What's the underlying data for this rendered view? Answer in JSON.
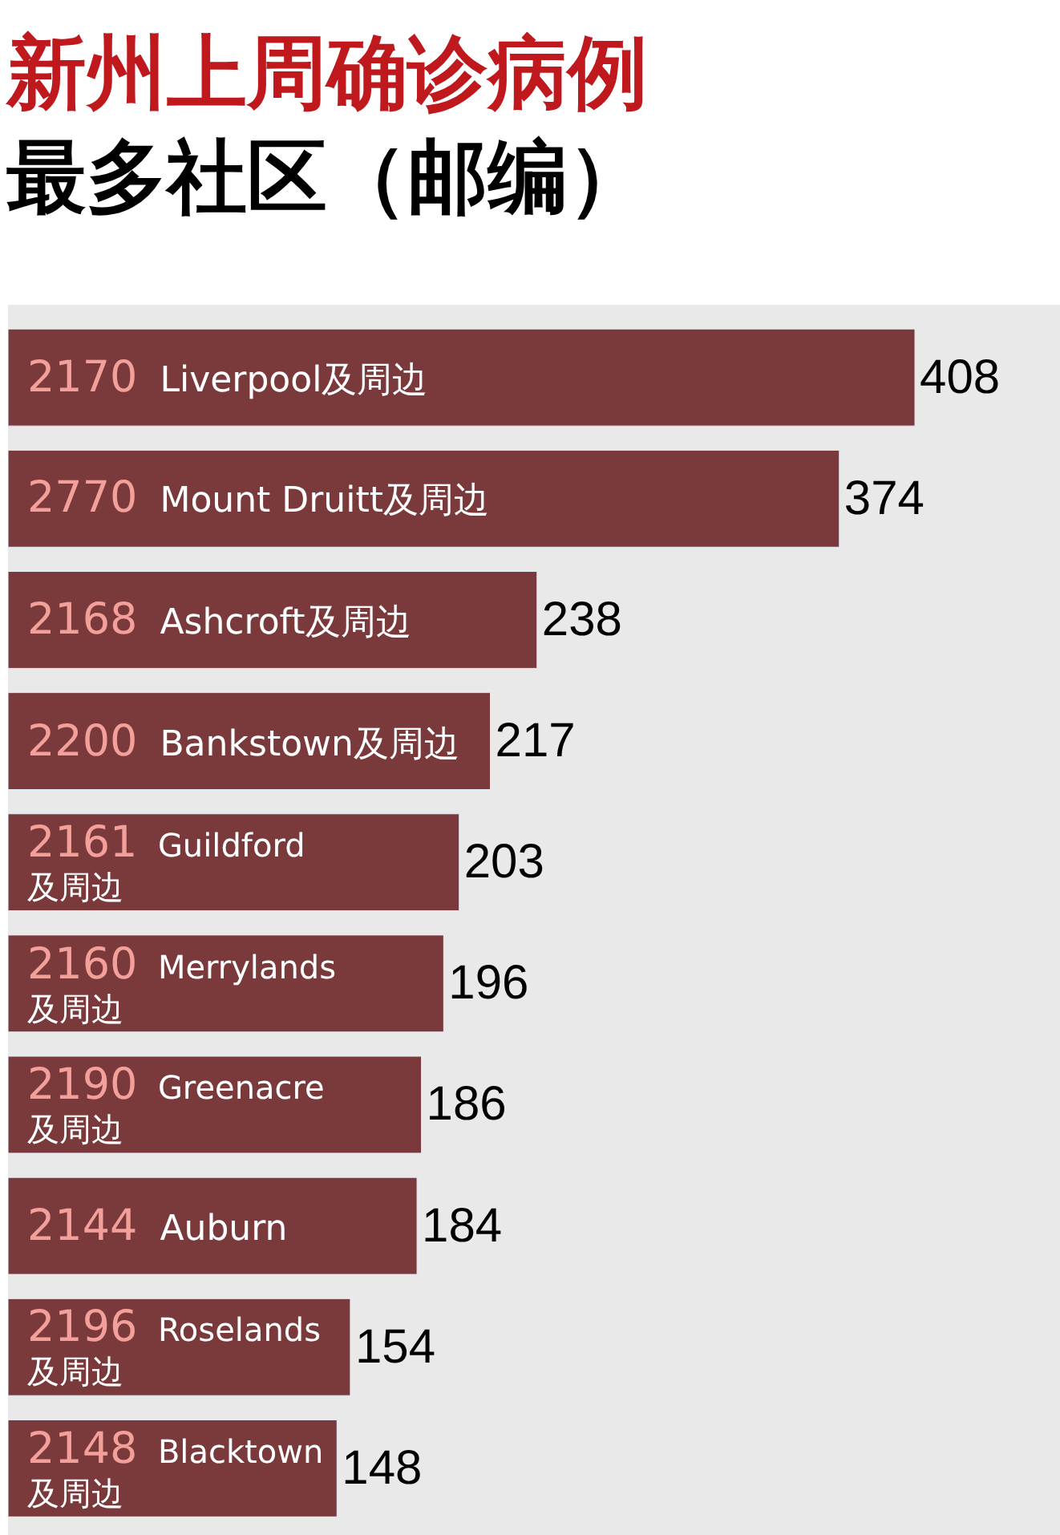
{
  "chart_data": {
    "type": "bar",
    "orientation": "horizontal",
    "title": "新州上周确诊病例",
    "subtitle": "最多社区（邮编）",
    "categories": [
      "2170 Liverpool及周边",
      "2770 Mount Druitt及周边",
      "2168 Ashcroft及周边",
      "2200 Bankstown及周边",
      "2161 Guildford及周边",
      "2160 Merrylands及周边",
      "2190 Greenacre及周边",
      "2144 Auburn",
      "2196 Roselands及周边",
      "2148 Blacktown及周边"
    ],
    "values": [
      408,
      374,
      238,
      217,
      203,
      196,
      186,
      184,
      154,
      148
    ],
    "color": "#7a3a3c",
    "data_labels": true,
    "grid": false,
    "legend": false
  }
}
